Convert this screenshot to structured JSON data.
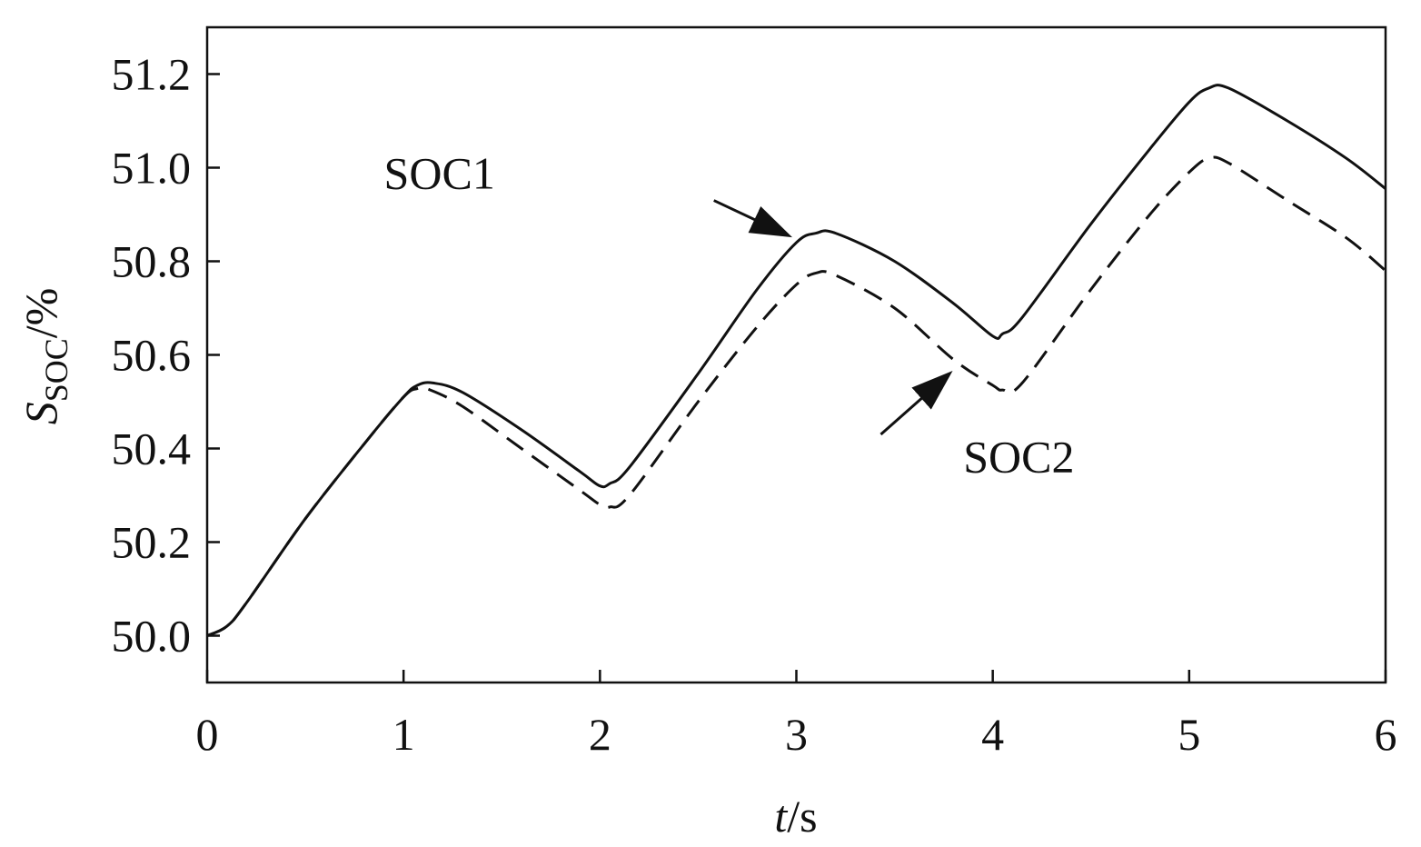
{
  "chart_data": {
    "type": "line",
    "xlabel": {
      "var": "t",
      "unit": "/s"
    },
    "ylabel": {
      "var": "S",
      "sub": "SOC",
      "unit": "/%"
    },
    "xlim": [
      0,
      6
    ],
    "ylim": [
      49.9,
      51.3
    ],
    "xticks": [
      0,
      1,
      2,
      3,
      4,
      5,
      6
    ],
    "xtick_labels": [
      "0",
      "1",
      "2",
      "3",
      "4",
      "5",
      "6"
    ],
    "yticks": [
      50.0,
      50.2,
      50.4,
      50.6,
      50.8,
      51.0,
      51.2
    ],
    "ytick_labels": [
      "50.0",
      "50.2",
      "50.4",
      "50.6",
      "50.8",
      "51.0",
      "51.2"
    ],
    "grid": false,
    "series": [
      {
        "name": "SOC1",
        "style": "solid",
        "color": "#111111",
        "points": [
          [
            0,
            50.0
          ],
          [
            0.1,
            50.02
          ],
          [
            0.2,
            50.07
          ],
          [
            0.5,
            50.25
          ],
          [
            0.8,
            50.41
          ],
          [
            1.0,
            50.51
          ],
          [
            1.07,
            50.535
          ],
          [
            1.15,
            50.54
          ],
          [
            1.3,
            50.52
          ],
          [
            1.6,
            50.44
          ],
          [
            1.9,
            50.35
          ],
          [
            2.0,
            50.32
          ],
          [
            2.05,
            50.325
          ],
          [
            2.15,
            50.36
          ],
          [
            2.5,
            50.56
          ],
          [
            2.8,
            50.74
          ],
          [
            3.0,
            50.84
          ],
          [
            3.1,
            50.86
          ],
          [
            3.2,
            50.86
          ],
          [
            3.5,
            50.8
          ],
          [
            3.8,
            50.71
          ],
          [
            4.0,
            50.64
          ],
          [
            4.05,
            50.645
          ],
          [
            4.15,
            50.68
          ],
          [
            4.5,
            50.88
          ],
          [
            4.8,
            51.04
          ],
          [
            5.0,
            51.14
          ],
          [
            5.1,
            51.17
          ],
          [
            5.2,
            51.17
          ],
          [
            5.5,
            51.1
          ],
          [
            5.8,
            51.02
          ],
          [
            6.0,
            50.955
          ]
        ]
      },
      {
        "name": "SOC2",
        "style": "dashed",
        "color": "#111111",
        "points": [
          [
            0,
            50.0
          ],
          [
            0.1,
            50.02
          ],
          [
            0.2,
            50.07
          ],
          [
            0.5,
            50.25
          ],
          [
            0.8,
            50.41
          ],
          [
            1.0,
            50.51
          ],
          [
            1.07,
            50.528
          ],
          [
            1.13,
            50.526
          ],
          [
            1.3,
            50.49
          ],
          [
            1.6,
            50.4
          ],
          [
            1.9,
            50.31
          ],
          [
            2.0,
            50.28
          ],
          [
            2.05,
            50.275
          ],
          [
            2.15,
            50.3
          ],
          [
            2.5,
            50.5
          ],
          [
            2.8,
            50.66
          ],
          [
            3.0,
            50.75
          ],
          [
            3.1,
            50.775
          ],
          [
            3.2,
            50.77
          ],
          [
            3.5,
            50.7
          ],
          [
            3.8,
            50.59
          ],
          [
            4.0,
            50.535
          ],
          [
            4.05,
            50.525
          ],
          [
            4.15,
            50.54
          ],
          [
            4.5,
            50.74
          ],
          [
            4.8,
            50.9
          ],
          [
            5.0,
            50.99
          ],
          [
            5.1,
            51.02
          ],
          [
            5.2,
            51.01
          ],
          [
            5.5,
            50.93
          ],
          [
            5.8,
            50.85
          ],
          [
            6.0,
            50.78
          ]
        ]
      }
    ],
    "annotations": [
      {
        "text": "SOC1",
        "text_at": [
          0.9,
          50.955
        ],
        "arrow_from": [
          2.58,
          50.93
        ],
        "arrow_to": [
          2.96,
          50.855
        ]
      },
      {
        "text": "SOC2",
        "text_at": [
          3.85,
          50.35
        ],
        "arrow_from": [
          3.43,
          50.43
        ],
        "arrow_to": [
          3.78,
          50.56
        ]
      }
    ]
  }
}
